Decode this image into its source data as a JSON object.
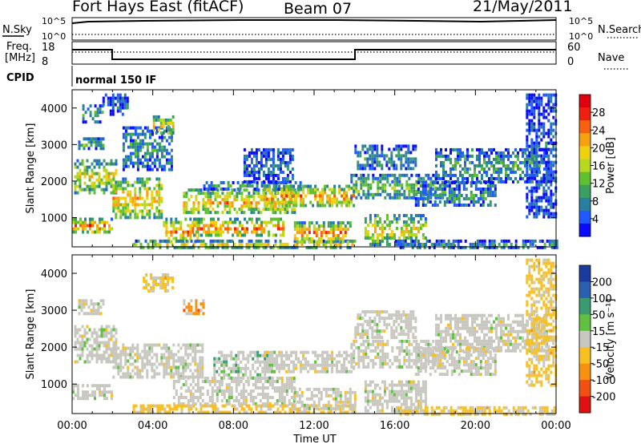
{
  "header": {
    "radar": "Fort Hays East (fitACF)",
    "beam": "Beam 07",
    "date": "21/May/2011"
  },
  "strip": {
    "nsky_label": "N.Sky",
    "nsearch_label": "N.Search",
    "freq_label_1": "Freq.",
    "freq_label_2": "[MHz]",
    "nave_label": "Nave",
    "cpid_label": "CPID",
    "cpid_value": "normal 150 IF",
    "noise_ticks": [
      "10^5",
      "10^0"
    ],
    "noise_ticks_right": [
      "10^5",
      "10^0"
    ],
    "freq_ticks": [
      "18",
      "8"
    ],
    "nave_ticks": [
      "60",
      "0"
    ]
  },
  "chart_data": [
    {
      "type": "heatmap",
      "panel": "power",
      "ylabel": "Slant Range [km]",
      "xlabel": "",
      "yticks": [
        "1000",
        "2000",
        "3000",
        "4000"
      ],
      "ylim": [
        200,
        4500
      ],
      "xlim": [
        0,
        24
      ],
      "colorbar": {
        "label": "Power [dB]",
        "ticks": [
          "4",
          "8",
          "12",
          "16",
          "20",
          "24",
          "28"
        ],
        "colors": [
          "#0a0aff",
          "#1e5aff",
          "#2a7fa0",
          "#3aa060",
          "#60c030",
          "#b8d820",
          "#f0d010",
          "#f8a010",
          "#f86010",
          "#f02010",
          "#e00010"
        ]
      },
      "regions": [
        {
          "t0": 0.0,
          "t1": 2.0,
          "r0": 600,
          "r1": 1000,
          "level": 0.85
        },
        {
          "t0": 0.1,
          "t1": 2.2,
          "r0": 1700,
          "r1": 2600,
          "level": 0.6
        },
        {
          "t0": 0.3,
          "t1": 1.6,
          "r0": 2900,
          "r1": 3200,
          "level": 0.35
        },
        {
          "t0": 0.5,
          "t1": 1.5,
          "r0": 3600,
          "r1": 4100,
          "level": 0.3
        },
        {
          "t0": 1.5,
          "t1": 2.8,
          "r0": 3800,
          "r1": 4400,
          "level": 0.15
        },
        {
          "t0": 2.0,
          "t1": 4.5,
          "r0": 1000,
          "r1": 2100,
          "level": 0.7
        },
        {
          "t0": 2.5,
          "t1": 5.0,
          "r0": 2300,
          "r1": 3500,
          "level": 0.25
        },
        {
          "t0": 4.0,
          "t1": 5.0,
          "r0": 3300,
          "r1": 3800,
          "level": 0.6
        },
        {
          "t0": 4.5,
          "t1": 6.2,
          "r0": 300,
          "r1": 1000,
          "level": 0.75
        },
        {
          "t0": 5.5,
          "t1": 11.0,
          "r0": 1100,
          "r1": 1800,
          "level": 0.7
        },
        {
          "t0": 6.0,
          "t1": 10.5,
          "r0": 500,
          "r1": 1000,
          "level": 0.8
        },
        {
          "t0": 3.0,
          "t1": 14.0,
          "r0": 200,
          "r1": 400,
          "level": 0.6
        },
        {
          "t0": 6.5,
          "t1": 11.5,
          "r0": 1800,
          "r1": 2000,
          "level": 0.3
        },
        {
          "t0": 8.5,
          "t1": 11.0,
          "r0": 2000,
          "r1": 2900,
          "level": 0.15
        },
        {
          "t0": 9.5,
          "t1": 14.0,
          "r0": 1300,
          "r1": 1900,
          "level": 0.75
        },
        {
          "t0": 11.0,
          "t1": 13.8,
          "r0": 300,
          "r1": 900,
          "level": 0.8
        },
        {
          "t0": 13.8,
          "t1": 18.5,
          "r0": 1500,
          "r1": 2200,
          "level": 0.4
        },
        {
          "t0": 14.0,
          "t1": 17.0,
          "r0": 2300,
          "r1": 3000,
          "level": 0.25
        },
        {
          "t0": 14.5,
          "t1": 17.5,
          "r0": 300,
          "r1": 1100,
          "level": 0.6
        },
        {
          "t0": 16.0,
          "t1": 24.0,
          "r0": 200,
          "r1": 400,
          "level": 0.25
        },
        {
          "t0": 18.0,
          "t1": 23.5,
          "r0": 2000,
          "r1": 2900,
          "level": 0.3
        },
        {
          "t0": 17.0,
          "t1": 21.0,
          "r0": 1300,
          "r1": 2000,
          "level": 0.25
        },
        {
          "t0": 22.5,
          "t1": 24.0,
          "r0": 1000,
          "r1": 4400,
          "level": 0.1
        }
      ]
    },
    {
      "type": "heatmap",
      "panel": "velocity",
      "ylabel": "Slant Range [km]",
      "xlabel": "Time UT",
      "xticks": [
        "00:00",
        "04:00",
        "08:00",
        "12:00",
        "16:00",
        "20:00",
        "00:00"
      ],
      "yticks": [
        "1000",
        "2000",
        "3000",
        "4000"
      ],
      "ylim": [
        200,
        4500
      ],
      "xlim": [
        0,
        24
      ],
      "colorbar": {
        "label": "Velocity [m s^-1]",
        "ticks": [
          "200",
          "100",
          "50",
          "15",
          "-15",
          "-50",
          "-100",
          "-200"
        ],
        "colors": [
          "#1a3aa0",
          "#2a60b0",
          "#3a9a70",
          "#60c040",
          "#c8c8c0",
          "#f8c020",
          "#f89010",
          "#f05010",
          "#e01010"
        ]
      },
      "regions": [
        {
          "t0": 0.0,
          "t1": 2.0,
          "r0": 600,
          "r1": 1000,
          "level": 0.5
        },
        {
          "t0": 0.1,
          "t1": 2.2,
          "r0": 1600,
          "r1": 2600,
          "level": 0.5
        },
        {
          "t0": 0.3,
          "t1": 1.6,
          "r0": 2900,
          "r1": 3300,
          "level": 0.5
        },
        {
          "t0": 3.5,
          "t1": 5.0,
          "r0": 3500,
          "r1": 4000,
          "level": 0.65
        },
        {
          "t0": 5.5,
          "t1": 6.5,
          "r0": 2900,
          "r1": 3300,
          "level": 0.8
        },
        {
          "t0": 2.0,
          "t1": 6.5,
          "r0": 1200,
          "r1": 2100,
          "level": 0.5
        },
        {
          "t0": 5.0,
          "t1": 11.0,
          "r0": 500,
          "r1": 1200,
          "level": 0.5
        },
        {
          "t0": 7.0,
          "t1": 10.0,
          "r0": 1200,
          "r1": 1900,
          "level": 0.3
        },
        {
          "t0": 3.0,
          "t1": 14.0,
          "r0": 200,
          "r1": 450,
          "level": 0.65
        },
        {
          "t0": 9.5,
          "t1": 14.0,
          "r0": 1300,
          "r1": 1900,
          "level": 0.5
        },
        {
          "t0": 11.0,
          "t1": 14.0,
          "r0": 300,
          "r1": 900,
          "level": 0.5
        },
        {
          "t0": 13.8,
          "t1": 18.5,
          "r0": 1500,
          "r1": 2200,
          "level": 0.5
        },
        {
          "t0": 14.0,
          "t1": 17.0,
          "r0": 2300,
          "r1": 3000,
          "level": 0.5
        },
        {
          "t0": 14.5,
          "t1": 17.5,
          "r0": 300,
          "r1": 1100,
          "level": 0.5
        },
        {
          "t0": 16.0,
          "t1": 24.0,
          "r0": 200,
          "r1": 400,
          "level": 0.6
        },
        {
          "t0": 18.0,
          "t1": 23.5,
          "r0": 1900,
          "r1": 2900,
          "level": 0.5
        },
        {
          "t0": 17.0,
          "t1": 21.0,
          "r0": 1300,
          "r1": 2000,
          "level": 0.5
        },
        {
          "t0": 22.5,
          "t1": 24.0,
          "r0": 1000,
          "r1": 4400,
          "level": 0.6
        }
      ]
    }
  ]
}
